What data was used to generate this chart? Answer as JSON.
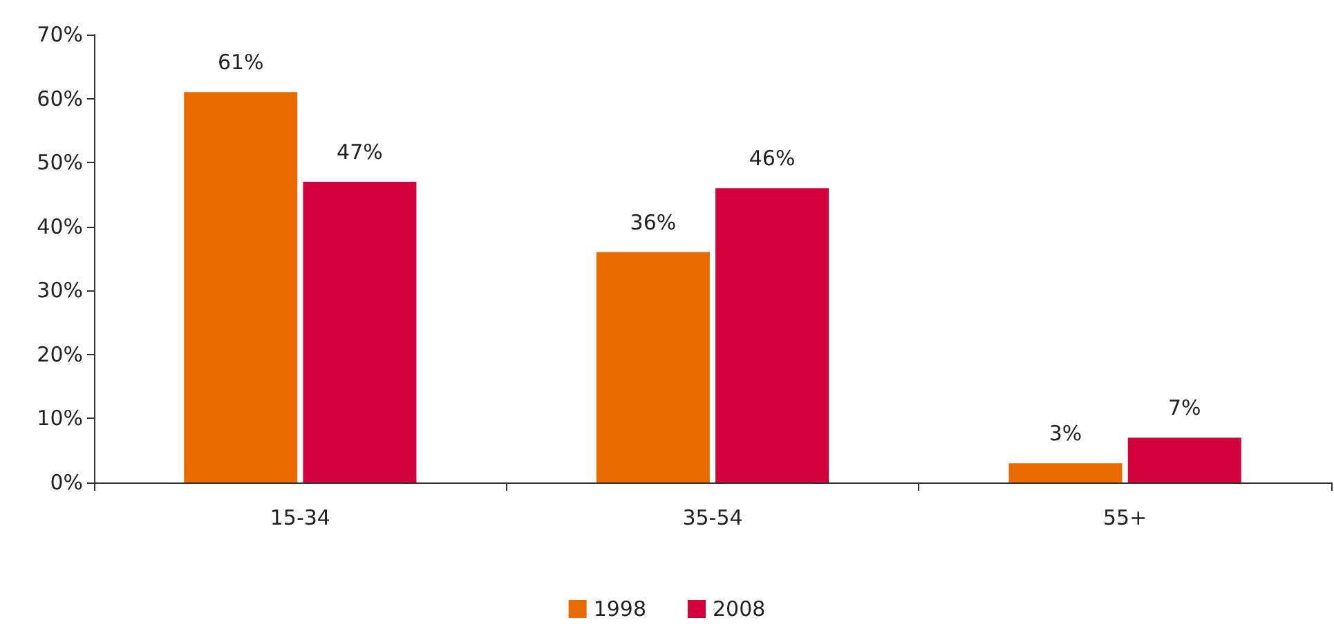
{
  "chart_data": {
    "type": "bar",
    "categories": [
      "15-34",
      "35-54",
      "55+"
    ],
    "series": [
      {
        "name": "1998",
        "color": "#e96b00",
        "values": [
          61,
          36,
          3
        ],
        "value_labels": [
          "61%",
          "36%",
          "3%"
        ]
      },
      {
        "name": "2008",
        "color": "#d2003b",
        "values": [
          47,
          46,
          7
        ],
        "value_labels": [
          "47%",
          "46%",
          "7%"
        ]
      }
    ],
    "ylim": [
      0,
      70
    ],
    "yticks": [
      {
        "value": 0,
        "label": "0%"
      },
      {
        "value": 10,
        "label": "10%"
      },
      {
        "value": 20,
        "label": "20%"
      },
      {
        "value": 30,
        "label": "30%"
      },
      {
        "value": 40,
        "label": "40%"
      },
      {
        "value": 50,
        "label": "50%"
      },
      {
        "value": 60,
        "label": "60%"
      },
      {
        "value": 70,
        "label": "70%"
      }
    ],
    "grid": false,
    "legend": "bottom"
  }
}
